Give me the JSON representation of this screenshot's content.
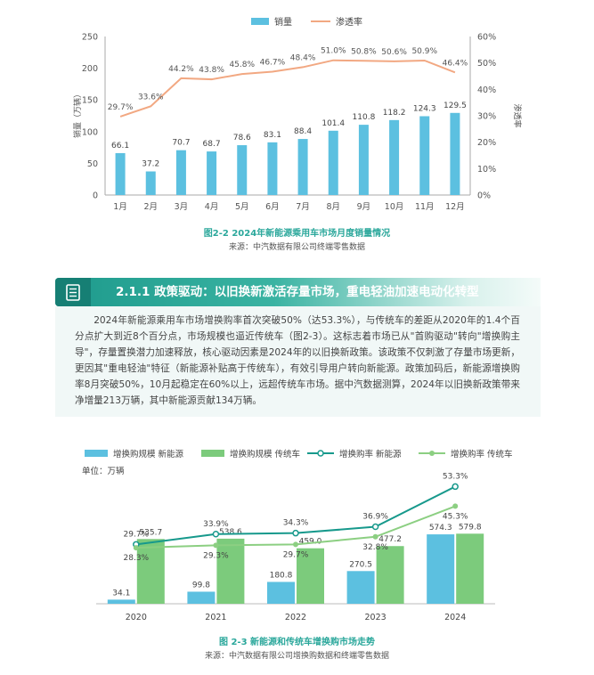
{
  "chart_data": [
    {
      "type": "bar+line",
      "title": "图2-2 2024年新能源乘用车市场月度销量情况",
      "source": "来源：中汽数据有限公司终端零售数据",
      "categories": [
        "1月",
        "2月",
        "3月",
        "4月",
        "5月",
        "6月",
        "7月",
        "8月",
        "9月",
        "10月",
        "11月",
        "12月"
      ],
      "series": [
        {
          "name": "销量",
          "kind": "bar",
          "axis": "left",
          "color": "#5cc0e0",
          "values": [
            66.1,
            37.2,
            70.7,
            68.7,
            78.6,
            83.1,
            88.4,
            101.4,
            110.8,
            118.2,
            124.3,
            129.5
          ],
          "labels": [
            "66.1",
            "37.2",
            "70.7",
            "68.7",
            "78.6",
            "83.1",
            "88.4",
            "101.4",
            "110.8",
            "118.2",
            "124.3",
            "129.5"
          ]
        },
        {
          "name": "渗透率",
          "kind": "line",
          "axis": "right",
          "color": "#f2a882",
          "values": [
            29.7,
            33.6,
            44.2,
            43.8,
            45.8,
            46.7,
            48.4,
            51.0,
            50.8,
            50.6,
            50.9,
            46.4
          ],
          "labels": [
            "29.7%",
            "33.6%",
            "44.2%",
            "43.8%",
            "45.8%",
            "46.7%",
            "48.4%",
            "51.0%",
            "50.8%",
            "50.6%",
            "50.9%",
            "46.4%"
          ]
        }
      ],
      "ylabel_left": "销量（万辆）",
      "ylabel_right": "渗透率",
      "ylim_left": [
        0,
        250
      ],
      "ylim_right": [
        0,
        60
      ],
      "yticks_left": [
        "0",
        "50",
        "100",
        "150",
        "200",
        "250"
      ],
      "yticks_right": [
        "0%",
        "10%",
        "20%",
        "30%",
        "40%",
        "50%",
        "60%"
      ],
      "legend_position": "top"
    },
    {
      "type": "bar+line",
      "title": "图 2-3 新能源和传统车增换购市场走势",
      "source": "来源：中汽数据有限公司增换购数据和终端零售数据",
      "unit_label": "单位：万辆",
      "categories": [
        "2020",
        "2021",
        "2022",
        "2023",
        "2024"
      ],
      "series": [
        {
          "name": "增换购规模 新能源",
          "kind": "bar",
          "color": "#5cc0e0",
          "values": [
            34.1,
            99.8,
            180.8,
            270.5,
            574.3
          ],
          "labels": [
            "34.1",
            "99.8",
            "180.8",
            "270.5",
            "574.3"
          ]
        },
        {
          "name": "增换购规模 传统车",
          "kind": "bar",
          "color": "#7ccb7c",
          "values": [
            535.7,
            538.6,
            459.0,
            477.2,
            579.8
          ],
          "labels": [
            "535.7",
            "538.6",
            "459.0",
            "477.2",
            "579.8"
          ]
        },
        {
          "name": "增换购率 新能源",
          "kind": "line",
          "color": "#17998c",
          "values": [
            29.7,
            33.9,
            34.3,
            36.9,
            53.3
          ],
          "labels": [
            "29.7%",
            "33.9%",
            "34.3%",
            "36.9%",
            "53.3%"
          ]
        },
        {
          "name": "增换购率 传统车",
          "kind": "line",
          "color": "#8ccf82",
          "values": [
            28.3,
            29.3,
            29.7,
            32.8,
            45.3
          ],
          "labels": [
            "28.3%",
            "29.3%",
            "29.7%",
            "32.8%",
            "45.3%"
          ]
        }
      ],
      "ylim_bar": [
        0,
        700
      ],
      "ylim_line": [
        20,
        60
      ],
      "legend_position": "top"
    }
  ],
  "section": {
    "icon": "document-list-icon",
    "title": "2.1.1 政策驱动：以旧换新激活存量市场，重电轻油加速电动化转型"
  },
  "paragraph": "2024年新能源乘用车市场增换购率首次突破50%（达53.3%），与传统车的差距从2020年的1.4个百分点扩大到近8个百分点，市场规模也逼近传统车（图2-3）。这标志着市场已从\"首购驱动\"转向\"增换购主导\"，存量置换潜力加速释放，核心驱动因素是2024年的以旧换新政策。该政策不仅刺激了存量市场更新，更因其\"重电轻油\"特征（新能源补贴高于传统车），有效引导用户转向新能源。政策加码后，新能源增换购率8月突破50%，10月起稳定在60%以上，远超传统车市场。据中汽数据测算，2024年以旧换新政策带来净增量213万辆，其中新能源贡献134万辆。",
  "colors": {
    "accent": "#1d9a8c",
    "caption": "#2aa79b",
    "bar_blue": "#5cc0e0",
    "bar_green": "#7ccb7c",
    "line_orange": "#f2a882",
    "line_teal": "#17998c",
    "line_green": "#8ccf82"
  }
}
